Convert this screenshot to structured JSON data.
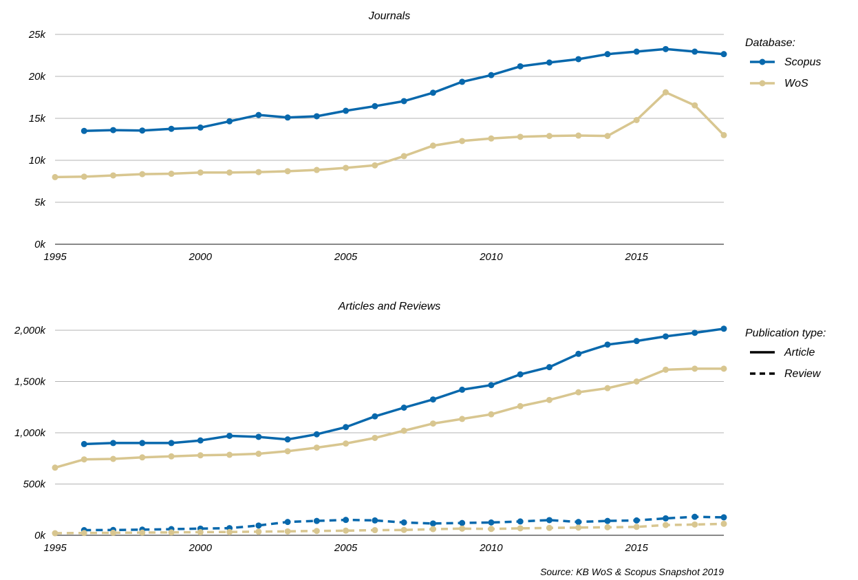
{
  "source_note": "Source: KB WoS & Scopus Snapshot 2019",
  "colors": {
    "scopus": "#0868ac",
    "wos": "#d8c690"
  },
  "chart_data": [
    {
      "type": "line",
      "title": "Journals",
      "xlabel": "",
      "ylabel": "",
      "xlim": [
        1995,
        2018
      ],
      "ylim": [
        0,
        25000
      ],
      "x_ticks": [
        1995,
        2000,
        2005,
        2010,
        2015
      ],
      "x_tick_labels": [
        "1995",
        "2000",
        "2005",
        "2010",
        "2015"
      ],
      "y_ticks": [
        0,
        5000,
        10000,
        15000,
        20000,
        25000
      ],
      "y_tick_labels": [
        "0k",
        "5k",
        "10k",
        "15k",
        "20k",
        "25k"
      ],
      "grid": true,
      "legend": {
        "title": "Database:",
        "placement": "right",
        "entries": [
          {
            "label": "Scopus",
            "color": "#0868ac",
            "line": "solid"
          },
          {
            "label": "WoS",
            "color": "#d8c690",
            "line": "solid"
          }
        ]
      },
      "series": [
        {
          "name": "Scopus",
          "color": "#0868ac",
          "dash": "solid",
          "x": [
            1996,
            1997,
            1998,
            1999,
            2000,
            2001,
            2002,
            2003,
            2004,
            2005,
            2006,
            2007,
            2008,
            2009,
            2010,
            2011,
            2012,
            2013,
            2014,
            2015,
            2016,
            2017,
            2018
          ],
          "y": [
            13500,
            13600,
            13550,
            13750,
            13900,
            14650,
            15400,
            15100,
            15250,
            15900,
            16450,
            17050,
            18050,
            19350,
            20150,
            21200,
            21650,
            22050,
            22650,
            22950,
            23250,
            22950,
            22650
          ]
        },
        {
          "name": "WoS",
          "color": "#d8c690",
          "dash": "solid",
          "x": [
            1995,
            1996,
            1997,
            1998,
            1999,
            2000,
            2001,
            2002,
            2003,
            2004,
            2005,
            2006,
            2007,
            2008,
            2009,
            2010,
            2011,
            2012,
            2013,
            2014,
            2015,
            2016,
            2017,
            2018
          ],
          "y": [
            8000,
            8050,
            8200,
            8350,
            8400,
            8550,
            8550,
            8600,
            8700,
            8850,
            9100,
            9400,
            10500,
            11750,
            12300,
            12600,
            12800,
            12900,
            12950,
            12900,
            14800,
            18100,
            16550,
            13000
          ]
        }
      ]
    },
    {
      "type": "line",
      "title": "Articles and Reviews",
      "xlabel": "",
      "ylabel": "",
      "xlim": [
        1995,
        2018
      ],
      "ylim": [
        0,
        2000000
      ],
      "x_ticks": [
        1995,
        2000,
        2005,
        2010,
        2015
      ],
      "x_tick_labels": [
        "1995",
        "2000",
        "2005",
        "2010",
        "2015"
      ],
      "y_ticks": [
        0,
        500000,
        1000000,
        1500000,
        2000000
      ],
      "y_tick_labels": [
        "0k",
        "500k",
        "1,000k",
        "1,500k",
        "2,000k"
      ],
      "grid": true,
      "legend": {
        "title": "Publication type:",
        "placement": "right",
        "entries": [
          {
            "label": "Article",
            "color": "#000000",
            "line": "solid"
          },
          {
            "label": "Review",
            "color": "#000000",
            "line": "dashed"
          }
        ]
      },
      "series": [
        {
          "color": "#0868ac",
          "dash": "solid",
          "x": [
            1996,
            1997,
            1998,
            1999,
            2000,
            2001,
            2002,
            2003,
            2004,
            2005,
            2006,
            2007,
            2008,
            2009,
            2010,
            2011,
            2012,
            2013,
            2014,
            2015,
            2016,
            2017,
            2018
          ],
          "y": [
            890000,
            900000,
            900000,
            900000,
            925000,
            970000,
            960000,
            935000,
            985000,
            1055000,
            1160000,
            1245000,
            1325000,
            1420000,
            1465000,
            1570000,
            1640000,
            1770000,
            1860000,
            1895000,
            1940000,
            1975000,
            2015000
          ]
        },
        {
          "color": "#d8c690",
          "dash": "solid",
          "x": [
            1995,
            1996,
            1997,
            1998,
            1999,
            2000,
            2001,
            2002,
            2003,
            2004,
            2005,
            2006,
            2007,
            2008,
            2009,
            2010,
            2011,
            2012,
            2013,
            2014,
            2015,
            2016,
            2017,
            2018
          ],
          "y": [
            660000,
            740000,
            745000,
            760000,
            770000,
            780000,
            785000,
            795000,
            820000,
            855000,
            895000,
            950000,
            1020000,
            1090000,
            1135000,
            1180000,
            1260000,
            1320000,
            1395000,
            1435000,
            1500000,
            1615000,
            1625000,
            1625000
          ]
        },
        {
          "color": "#0868ac",
          "dash": "dashed",
          "x": [
            1996,
            1997,
            1998,
            1999,
            2000,
            2001,
            2002,
            2003,
            2004,
            2005,
            2006,
            2007,
            2008,
            2009,
            2010,
            2011,
            2012,
            2013,
            2014,
            2015,
            2016,
            2017,
            2018
          ],
          "y": [
            50000,
            52000,
            55000,
            60000,
            65000,
            70000,
            95000,
            130000,
            140000,
            150000,
            145000,
            125000,
            115000,
            120000,
            125000,
            135000,
            148000,
            130000,
            140000,
            145000,
            165000,
            180000,
            175000
          ]
        },
        {
          "color": "#d8c690",
          "dash": "dashed",
          "x": [
            1995,
            1996,
            1997,
            1998,
            1999,
            2000,
            2001,
            2002,
            2003,
            2004,
            2005,
            2006,
            2007,
            2008,
            2009,
            2010,
            2011,
            2012,
            2013,
            2014,
            2015,
            2016,
            2017,
            2018
          ],
          "y": [
            20000,
            22000,
            24000,
            26000,
            28000,
            30000,
            32000,
            35000,
            38000,
            42000,
            45000,
            50000,
            52000,
            60000,
            65000,
            62000,
            68000,
            72000,
            75000,
            78000,
            82000,
            100000,
            105000,
            112000
          ]
        }
      ]
    }
  ]
}
